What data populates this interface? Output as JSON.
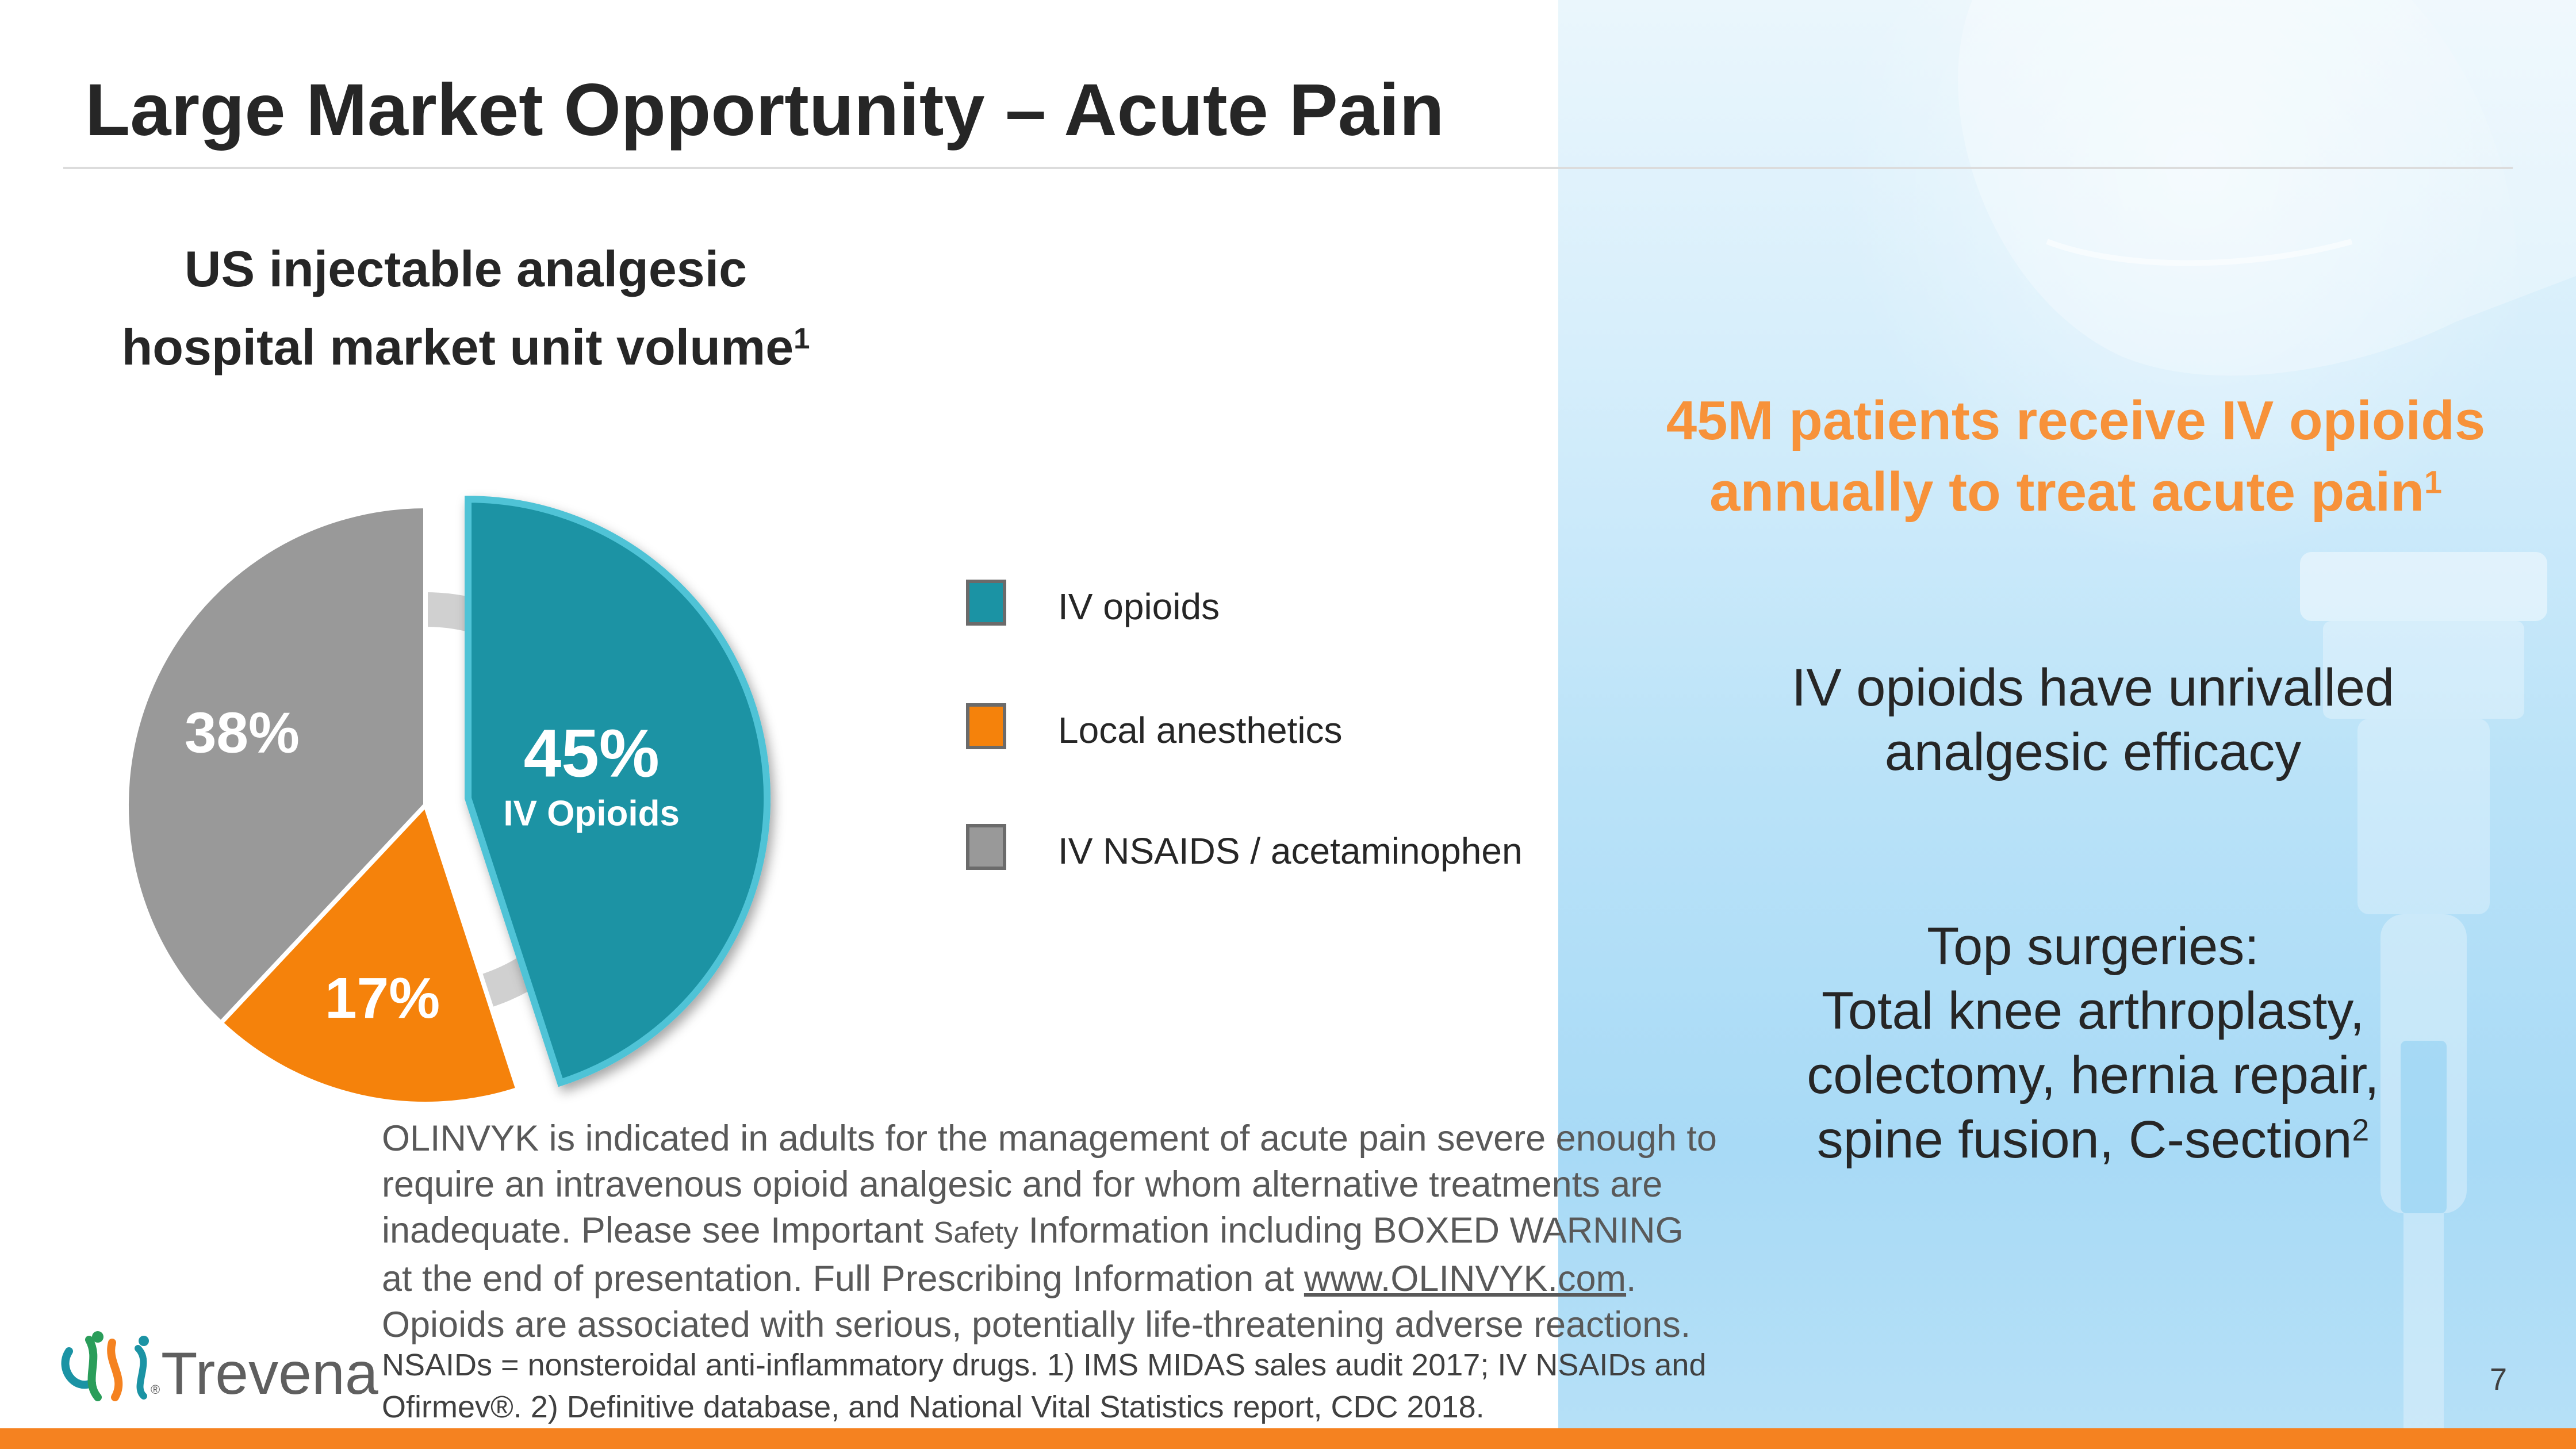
{
  "slide": {
    "title": "Large Market Opportunity – Acute Pain",
    "page_number": "7"
  },
  "chart": {
    "title_line1": "US injectable analgesic",
    "title_line2": "hospital market unit volume",
    "title_sup": "1"
  },
  "chart_data": {
    "type": "pie",
    "title": "US injectable analgesic hospital market unit volume",
    "categories": [
      "IV opioids",
      "Local anesthetics",
      "IV NSAIDS / acetaminophen"
    ],
    "values": [
      45,
      17,
      38
    ],
    "unit": "%",
    "slice_labels": [
      "45%",
      "17%",
      "38%"
    ],
    "slice_sublabels": [
      "IV Opioids",
      "",
      ""
    ],
    "colors": [
      "#1b93a4",
      "#f5820b",
      "#999999"
    ],
    "exploded": "IV opioids",
    "legend_position": "right"
  },
  "legend": {
    "items": [
      {
        "label": "IV opioids",
        "color": "#1b93a4"
      },
      {
        "label": "Local anesthetics",
        "color": "#f5820b"
      },
      {
        "label": "IV NSAIDS / acetaminophen",
        "color": "#999999"
      }
    ]
  },
  "callout": {
    "line1": "45M patients receive IV opioids",
    "line2": "annually to treat acute pain",
    "sup": "1",
    "color": "#f7923a"
  },
  "facts": {
    "efficacy_line1": "IV opioids have unrivalled",
    "efficacy_line2": "analgesic efficacy",
    "surgeries_heading": "Top surgeries:",
    "surgeries_line1": "Total knee arthroplasty,",
    "surgeries_line2": "colectomy, hernia repair,",
    "surgeries_line3": "spine fusion, C-section",
    "surgeries_sup": "2"
  },
  "disclaimer": {
    "line1": "OLINVYK is indicated in adults for the management of acute pain severe enough to",
    "line2": "require an intravenous opioid analgesic and for whom alternative treatments are",
    "line3a": "inadequate.  Please see Important ",
    "line3_small": "Safety",
    "line3b": " Information including BOXED WARNING",
    "line4a": "at the end of presentation. Full Prescribing Information at ",
    "line4_link": "www.OLINVYK.com",
    "line4b": ".",
    "line5": "Opioids are associated with serious, potentially life-threatening adverse reactions."
  },
  "footnote": {
    "line1": "NSAIDs = nonsteroidal anti-inflammatory drugs. 1) IMS MIDAS sales audit 2017; IV NSAIDs and",
    "line2": "Ofirmev®. 2) Definitive database, and National Vital Statistics report, CDC 2018."
  },
  "logo": {
    "name": "Trevena",
    "reg": "®"
  },
  "colors": {
    "accent_orange": "#f58220",
    "footer_bar": "#f58220"
  }
}
